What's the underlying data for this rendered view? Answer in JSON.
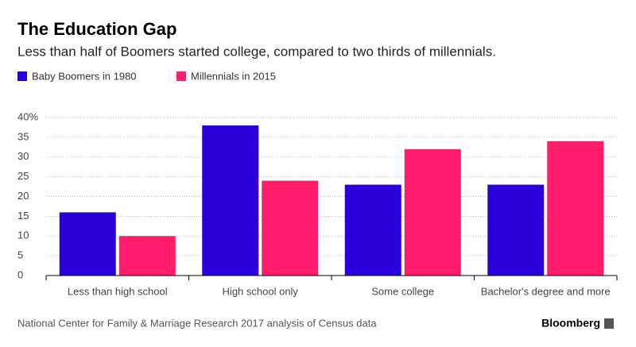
{
  "chart_data": {
    "type": "bar",
    "title": "The Education Gap",
    "subtitle": "Less than half of Boomers started college, compared to two thirds of millennials.",
    "categories": [
      "Less than high school",
      "High school only",
      "Some college",
      "Bachelor's degree and more"
    ],
    "series": [
      {
        "name": "Baby Boomers in 1980",
        "color": "#2a00db",
        "values": [
          16,
          38,
          23,
          23
        ]
      },
      {
        "name": "Millennials in 2015",
        "color": "#ff1c6b",
        "values": [
          10,
          24,
          32,
          34
        ]
      }
    ],
    "ylim": [
      0,
      40
    ],
    "yticks": [
      0,
      5,
      10,
      15,
      20,
      25,
      30,
      35,
      {
        "value": 40,
        "label": "40%"
      }
    ],
    "grid": true,
    "source": "National Center for Family & Marriage Research 2017 analysis of Census data",
    "brand": "Bloomberg"
  }
}
